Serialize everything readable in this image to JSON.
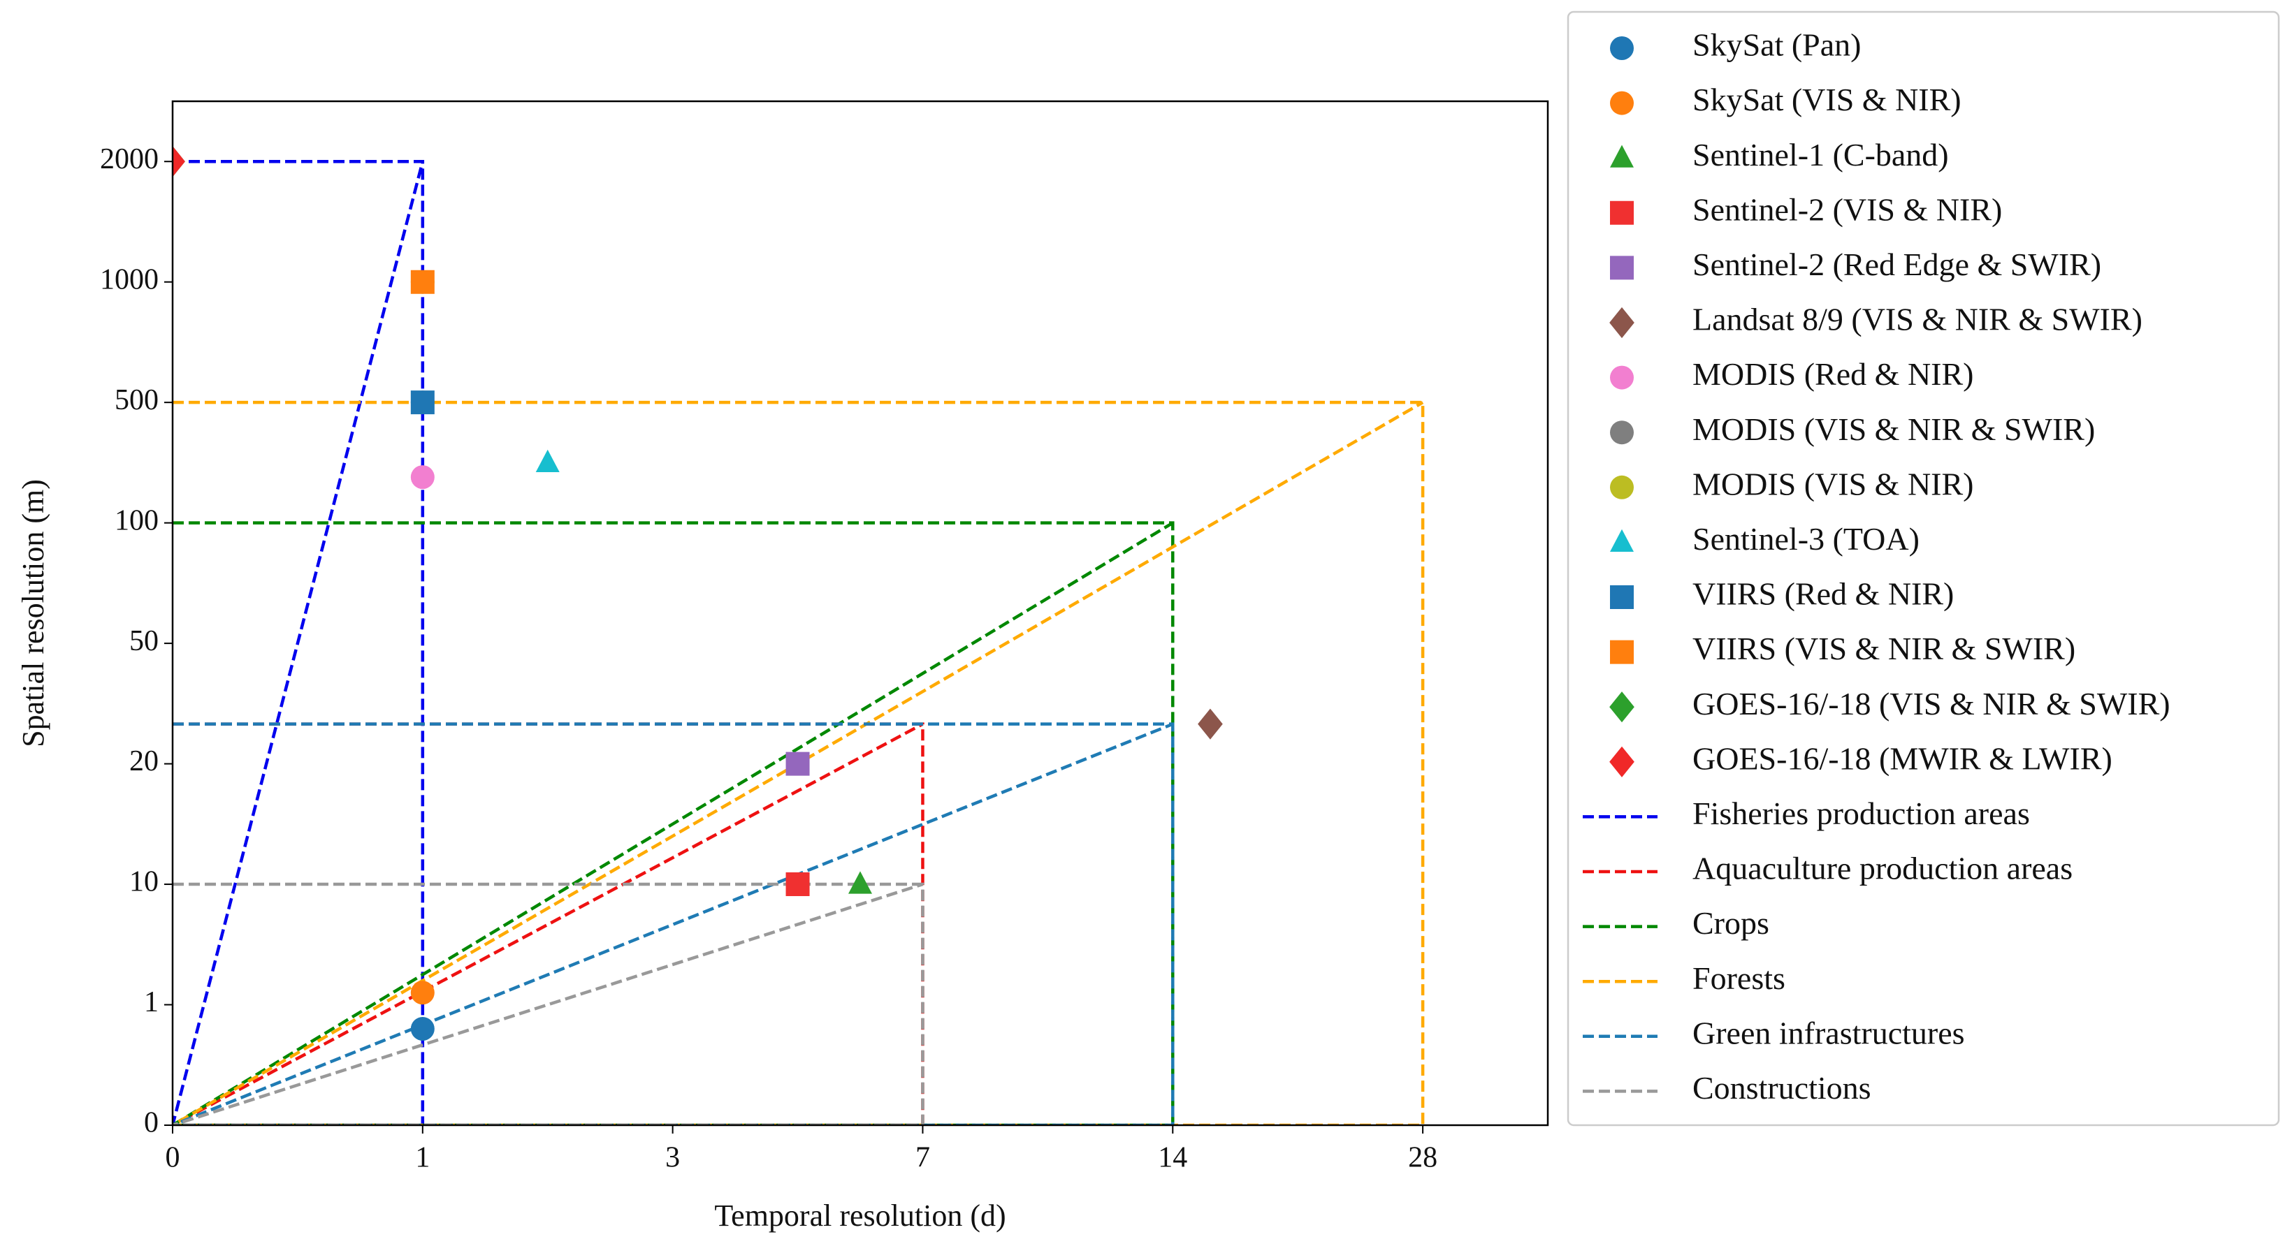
{
  "chart_data": {
    "type": "scatter",
    "xlabel": "Temporal resolution (d)",
    "ylabel": "Spatial resolution (m)",
    "xlim": [
      0,
      5.5
    ],
    "ylim": [
      0,
      8.5
    ],
    "xticks": [
      {
        "value": 0,
        "label": "0"
      },
      {
        "value": 1,
        "label": "1"
      },
      {
        "value": 2,
        "label": "3"
      },
      {
        "value": 3,
        "label": "7"
      },
      {
        "value": 4,
        "label": "14"
      },
      {
        "value": 5,
        "label": "28"
      }
    ],
    "yticks": [
      {
        "value": 0,
        "label": "0"
      },
      {
        "value": 1,
        "label": "1"
      },
      {
        "value": 2,
        "label": "10"
      },
      {
        "value": 3,
        "label": "20"
      },
      {
        "value": 4,
        "label": "50"
      },
      {
        "value": 5,
        "label": "100"
      },
      {
        "value": 6,
        "label": "500"
      },
      {
        "value": 7,
        "label": "1000"
      },
      {
        "value": 8,
        "label": "2000"
      }
    ],
    "legend": "outside right",
    "series": [
      {
        "name": "SkySat (Pan)",
        "color": "#1f77b4",
        "marker": "circle",
        "x": [
          1
        ],
        "y": [
          0.8
        ]
      },
      {
        "name": "SkySat (VIS & NIR)",
        "color": "#ff7f0e",
        "marker": "circle",
        "x": [
          1
        ],
        "y": [
          1.1
        ]
      },
      {
        "name": "Sentinel-1 (C-band)",
        "color": "#2ca02c",
        "marker": "triangle",
        "x": [
          2.75
        ],
        "y": [
          2
        ]
      },
      {
        "name": "Sentinel-2 (VIS & NIR)",
        "color": "#f03030",
        "marker": "square",
        "x": [
          2.5
        ],
        "y": [
          2
        ]
      },
      {
        "name": "Sentinel-2 (Red Edge & SWIR)",
        "color": "#9467bd",
        "marker": "square",
        "x": [
          2.5
        ],
        "y": [
          3
        ]
      },
      {
        "name": "Landsat 8/9 (VIS & NIR & SWIR)",
        "color": "#8c564b",
        "marker": "diamond",
        "x": [
          4.15
        ],
        "y": [
          3.33
        ]
      },
      {
        "name": "MODIS (Red & NIR)",
        "color": "#f27fd0",
        "marker": "circle",
        "x": [
          1
        ],
        "y": [
          5.38
        ]
      },
      {
        "name": "MODIS (VIS & NIR & SWIR)",
        "color": "#7f7f7f",
        "marker": "circle",
        "x": [
          1
        ],
        "y": [
          6
        ]
      },
      {
        "name": "MODIS (VIS & NIR)",
        "color": "#bcbd22",
        "marker": "circle",
        "x": [
          1
        ],
        "y": [
          7
        ]
      },
      {
        "name": "Sentinel-3 (TOA)",
        "color": "#17becf",
        "marker": "triangle",
        "x": [
          1.5
        ],
        "y": [
          5.5
        ]
      },
      {
        "name": "VIIRS (Red & NIR)",
        "color": "#1f77b4",
        "marker": "square",
        "x": [
          1
        ],
        "y": [
          6
        ]
      },
      {
        "name": "VIIRS (VIS & NIR & SWIR)",
        "color": "#ff7f0e",
        "marker": "square",
        "x": [
          1
        ],
        "y": [
          7
        ]
      },
      {
        "name": "GOES-16/-18 (VIS & NIR & SWIR)",
        "color": "#2ca02c",
        "marker": "diamond",
        "x": [
          0
        ],
        "y": [
          8
        ]
      },
      {
        "name": "GOES-16/-18 (MWIR & LWIR)",
        "color": "#f02828",
        "marker": "diamond",
        "x": [
          0
        ],
        "y": [
          8
        ]
      },
      {
        "name": "Fisheries production areas",
        "color": "#0000ee",
        "linestyle": "dashed",
        "x": [
          0,
          1,
          1,
          0,
          1
        ],
        "y": [
          8,
          8,
          0,
          0,
          8
        ]
      },
      {
        "name": "Aquaculture production areas",
        "color": "#ee1111",
        "linestyle": "dashed",
        "x": [
          0,
          3,
          3,
          0,
          3
        ],
        "y": [
          3.33,
          3.33,
          0,
          0,
          3.33
        ]
      },
      {
        "name": "Crops",
        "color": "#008800",
        "linestyle": "dashed",
        "x": [
          0,
          4,
          4,
          0,
          4
        ],
        "y": [
          5,
          5,
          0,
          0,
          5
        ]
      },
      {
        "name": "Forests",
        "color": "#ffaa00",
        "linestyle": "dashed",
        "x": [
          0,
          5,
          5,
          0,
          5
        ],
        "y": [
          6,
          6,
          0,
          0,
          6
        ]
      },
      {
        "name": "Green infrastructures",
        "color": "#1f7bb4",
        "linestyle": "dashed",
        "x": [
          0,
          4,
          4,
          0,
          4
        ],
        "y": [
          3.33,
          3.33,
          0,
          0,
          3.33
        ]
      },
      {
        "name": "Constructions",
        "color": "#999999",
        "linestyle": "dashed",
        "x": [
          0,
          3,
          3,
          0,
          3
        ],
        "y": [
          2,
          2,
          0,
          0,
          2
        ]
      }
    ]
  }
}
